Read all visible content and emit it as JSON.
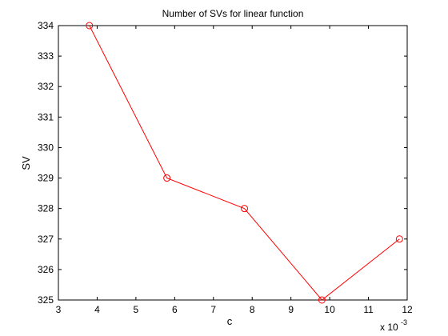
{
  "chart_data": {
    "type": "line",
    "title": "Number of SVs for linear function",
    "xlabel": "c",
    "ylabel": "SV",
    "x_multiplier_label": "x 10",
    "x_multiplier_exponent": "-3",
    "xlim": [
      3,
      12
    ],
    "ylim": [
      325,
      334
    ],
    "x_ticks": [
      "3",
      "4",
      "5",
      "6",
      "7",
      "8",
      "9",
      "10",
      "11",
      "12"
    ],
    "y_ticks": [
      "325",
      "326",
      "327",
      "328",
      "329",
      "330",
      "331",
      "332",
      "333",
      "334"
    ],
    "grid": false,
    "series": [
      {
        "color": "#ff0000",
        "marker": "circle",
        "x": [
          3.8,
          5.8,
          7.8,
          9.8,
          11.8
        ],
        "y": [
          334,
          329,
          328,
          325,
          327
        ]
      }
    ]
  }
}
